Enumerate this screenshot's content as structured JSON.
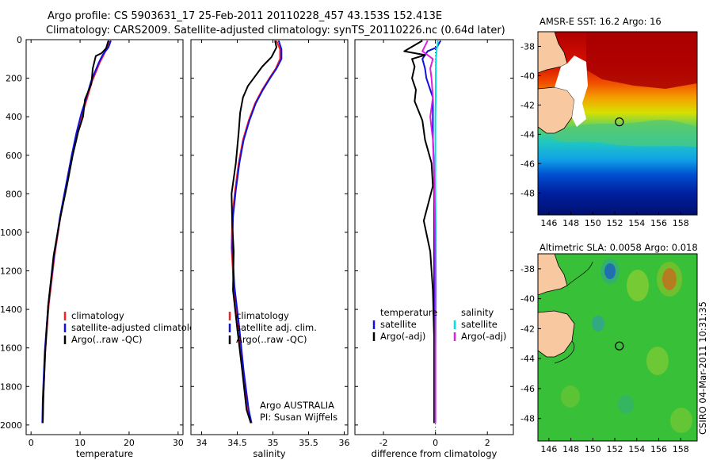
{
  "header": {
    "line1": "Argo profile: CS 5903631_17 25-Feb-2011 20110228_457 43.153S 152.413E",
    "line2": "Climatology: CARS2009. Satellite-adjusted climatology: synTS_20110226.nc (0.64d later)"
  },
  "side_label": "CSIRO 04-Mar-2011 10:31:35",
  "colors": {
    "climatology": "#ff2020",
    "satellite": "#1010e0",
    "argo": "#000000",
    "sal_satellite": "#00e0e0",
    "sal_argo": "#e020e0",
    "land": "#f8c8a0",
    "grid": "#000000"
  },
  "depth_ticks": [
    "0",
    "200",
    "400",
    "600",
    "800",
    "1000",
    "1200",
    "1400",
    "1600",
    "1800",
    "2000"
  ],
  "chart_data": [
    {
      "id": "temperature",
      "type": "line",
      "xlabel": "temperature",
      "ylabel": "",
      "xlim": [
        -1,
        31
      ],
      "ylim": [
        2050,
        0
      ],
      "x_ticks": [
        "0",
        "10",
        "20",
        "30"
      ],
      "legend": {
        "placement": "bottom-center",
        "entries": [
          "climatology",
          "satellite-adjusted climatology",
          "Argo(..raw -QC)"
        ]
      },
      "series": [
        {
          "name": "climatology",
          "color_key": "climatology",
          "x": [
            16.0,
            15.5,
            14.8,
            14.0,
            13.2,
            12.4,
            11.5,
            10.5,
            9.5,
            8.4,
            7.2,
            6.0,
            4.8,
            3.6,
            2.9,
            2.5,
            2.4
          ],
          "y": [
            5,
            40,
            80,
            120,
            170,
            220,
            300,
            380,
            480,
            600,
            760,
            920,
            1120,
            1380,
            1620,
            1860,
            1990
          ]
        },
        {
          "name": "satellite-adjusted climatology",
          "color_key": "satellite",
          "x": [
            16.3,
            15.8,
            14.6,
            13.8,
            13.0,
            12.2,
            11.3,
            10.3,
            9.3,
            8.3,
            7.1,
            5.9,
            4.7,
            3.5,
            2.8,
            2.4,
            2.3
          ],
          "y": [
            5,
            40,
            80,
            120,
            170,
            220,
            300,
            380,
            480,
            600,
            760,
            920,
            1120,
            1380,
            1620,
            1860,
            1990
          ]
        },
        {
          "name": "Argo(..raw -QC)",
          "color_key": "argo",
          "x": [
            15.8,
            15.3,
            14.4,
            13.2,
            12.6,
            12.3,
            11.0,
            10.6,
            9.6,
            8.5,
            7.3,
            6.0,
            4.6,
            3.5,
            2.9,
            2.5,
            2.4
          ],
          "y": [
            5,
            45,
            70,
            85,
            150,
            230,
            310,
            400,
            480,
            600,
            760,
            920,
            1120,
            1380,
            1620,
            1860,
            1990
          ]
        }
      ]
    },
    {
      "id": "salinity",
      "type": "line",
      "xlabel": "salinity",
      "ylabel": "",
      "xlim": [
        33.85,
        36.05
      ],
      "ylim": [
        2050,
        0
      ],
      "x_ticks": [
        "34",
        "34.5",
        "35",
        "35.5",
        "36"
      ],
      "legend": {
        "placement": "bottom-center",
        "entries": [
          "climatology",
          "satellite adj. clim.",
          "Argo(..raw -QC)"
        ]
      },
      "annotation": [
        "Argo AUSTRALIA",
        "PI: Susan Wijffels"
      ],
      "series": [
        {
          "name": "climatology",
          "color_key": "climatology",
          "x": [
            35.05,
            35.1,
            35.1,
            35.04,
            34.95,
            34.85,
            34.75,
            34.66,
            34.58,
            34.52,
            34.47,
            34.43,
            34.42,
            34.45,
            34.52,
            34.58,
            34.65,
            34.7
          ],
          "y": [
            5,
            50,
            100,
            150,
            200,
            260,
            330,
            420,
            520,
            640,
            780,
            920,
            1080,
            1280,
            1500,
            1720,
            1920,
            1990
          ]
        },
        {
          "name": "satellite adj. clim.",
          "color_key": "satellite",
          "x": [
            35.08,
            35.12,
            35.12,
            35.05,
            34.96,
            34.86,
            34.76,
            34.67,
            34.59,
            34.53,
            34.48,
            34.44,
            34.43,
            34.46,
            34.53,
            34.59,
            34.66,
            34.7
          ],
          "y": [
            5,
            50,
            100,
            150,
            200,
            260,
            330,
            420,
            520,
            640,
            780,
            920,
            1080,
            1280,
            1500,
            1720,
            1920,
            1990
          ]
        },
        {
          "name": "Argo(..raw -QC)",
          "color_key": "argo",
          "x": [
            35.03,
            35.05,
            34.98,
            34.85,
            34.75,
            34.65,
            34.58,
            34.54,
            34.52,
            34.48,
            34.42,
            34.43,
            34.45,
            34.44,
            34.5,
            34.57,
            34.63,
            34.69
          ],
          "y": [
            5,
            40,
            90,
            140,
            190,
            240,
            300,
            380,
            480,
            640,
            800,
            960,
            1100,
            1300,
            1500,
            1720,
            1920,
            1990
          ]
        }
      ]
    },
    {
      "id": "difference",
      "type": "line",
      "xlabel": "difference from climatology",
      "ylabel": "",
      "xlim": [
        -3.1,
        3.0
      ],
      "ylim": [
        2050,
        0
      ],
      "x_ticks": [
        "-2",
        "0",
        "2"
      ],
      "legend": {
        "placement": "bottom-center",
        "temperature_header": "temperature",
        "salinity_header": "salinity",
        "entries": [
          "satellite",
          "Argo(-adj)",
          "satellite",
          "Argo(-adj)"
        ]
      },
      "series": [
        {
          "name": "satellite",
          "color_key": "satellite",
          "x": [
            0.2,
            0.05,
            -0.3,
            -0.5,
            -0.4,
            -0.35,
            -0.2,
            -0.1,
            -0.1,
            -0.1,
            -0.05,
            -0.05,
            -0.05,
            -0.05,
            -0.05,
            -0.05
          ],
          "y": [
            5,
            40,
            60,
            100,
            150,
            200,
            260,
            300,
            400,
            500,
            700,
            900,
            1100,
            1400,
            1700,
            1990
          ]
        },
        {
          "name": "Argo(-adj)",
          "color_key": "argo",
          "x": [
            -0.5,
            -1.2,
            -0.4,
            -0.9,
            -0.8,
            -0.9,
            -0.75,
            -0.8,
            -0.5,
            -0.4,
            -0.15,
            -0.1,
            -0.45,
            -0.2,
            -0.1,
            -0.05,
            -0.05,
            -0.05
          ],
          "y": [
            5,
            60,
            80,
            100,
            140,
            200,
            260,
            320,
            420,
            520,
            640,
            760,
            940,
            1100,
            1300,
            1550,
            1800,
            1990
          ]
        },
        {
          "name": "satellite",
          "color_key": "sal_satellite",
          "x": [
            0.1,
            0.05,
            0.02,
            0.01,
            0.01,
            0.0,
            0.0,
            0.0,
            0.01,
            0.02,
            0.0,
            0.0
          ],
          "y": [
            5,
            50,
            100,
            200,
            300,
            400,
            600,
            800,
            1000,
            1300,
            1600,
            1990
          ]
        },
        {
          "name": "Argo(-adj)",
          "color_key": "sal_argo",
          "x": [
            -0.3,
            -0.5,
            -0.1,
            -0.2,
            -0.15,
            -0.1,
            -0.2,
            -0.1,
            -0.05,
            -0.02,
            0.0,
            0.0
          ],
          "y": [
            5,
            60,
            100,
            150,
            200,
            300,
            400,
            520,
            700,
            900,
            1200,
            1990
          ]
        }
      ]
    }
  ],
  "maps": [
    {
      "id": "sst",
      "title": "AMSR-E SST: 16.2 Argo: 16",
      "lat_ticks": [
        "-38",
        "-40",
        "-42",
        "-44",
        "-46",
        "-48"
      ],
      "lon_ticks": [
        "146",
        "148",
        "150",
        "152",
        "154",
        "156",
        "158"
      ],
      "lon_range": [
        145,
        159.5
      ],
      "lat_range": [
        -37,
        -49.5
      ],
      "argo_position": {
        "lon": 152.413,
        "lat": -43.153
      }
    },
    {
      "id": "sla",
      "title": "Altimetric SLA: 0.0058 Argo: 0.018",
      "lat_ticks": [
        "-38",
        "-40",
        "-42",
        "-44",
        "-46",
        "-48"
      ],
      "lon_ticks": [
        "146",
        "148",
        "150",
        "152",
        "154",
        "156",
        "158"
      ],
      "lon_range": [
        145,
        159.5
      ],
      "lat_range": [
        -37,
        -49.5
      ],
      "argo_position": {
        "lon": 152.413,
        "lat": -43.153
      }
    }
  ]
}
